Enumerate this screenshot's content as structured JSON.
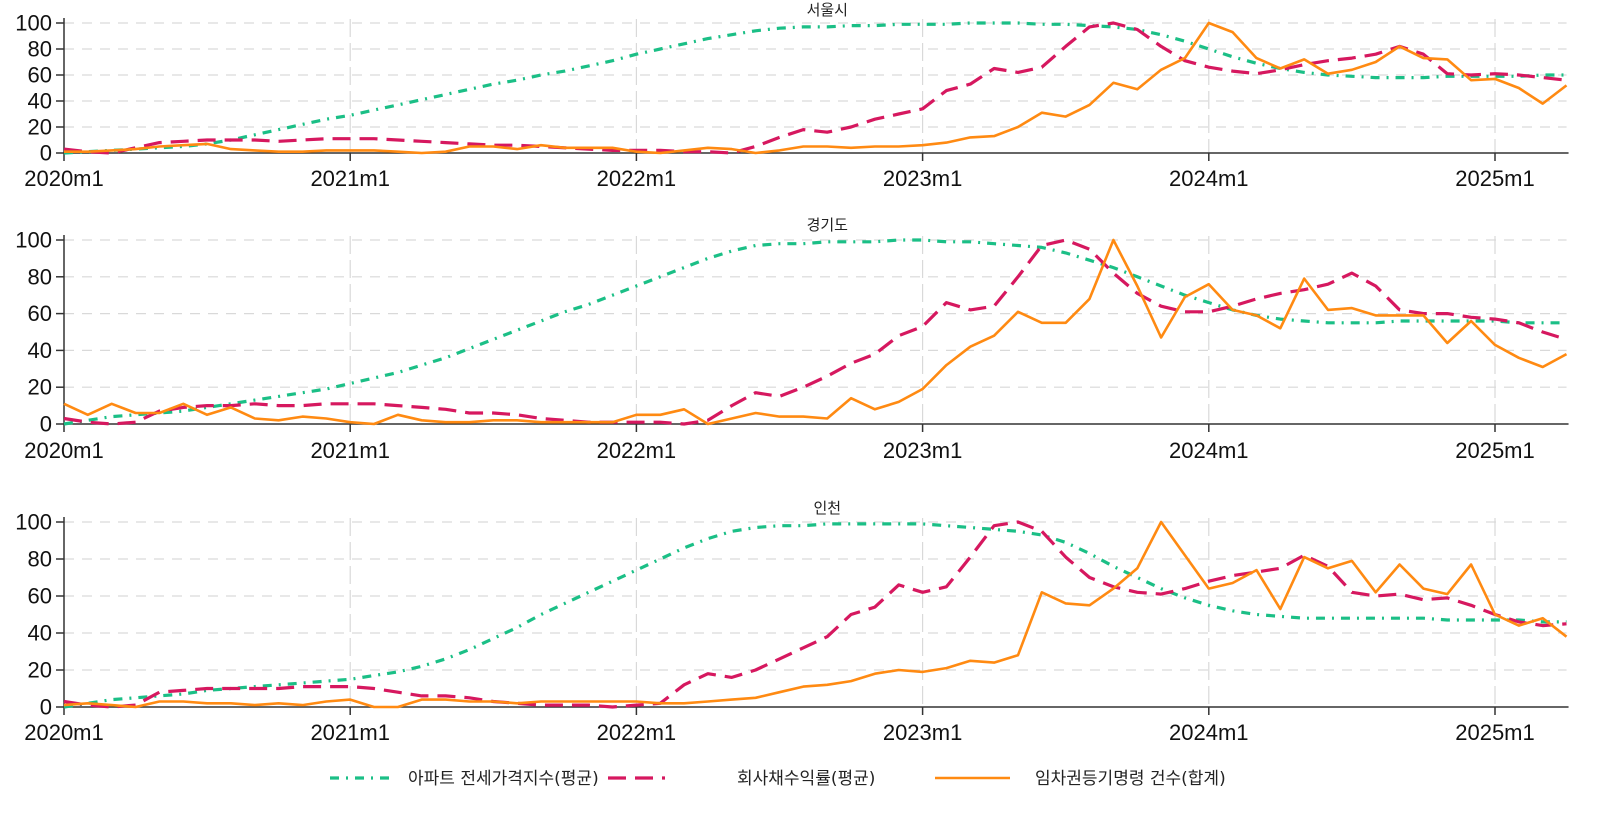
{
  "colors": {
    "jeonse": "#1bbf86",
    "bond": "#d6185f",
    "lease": "#ff8a12",
    "grid": "#d9d9d9",
    "axis": "#333333"
  },
  "chart_data": {
    "type": "line",
    "x_start": "2020m1",
    "x_tick_labels": [
      "2020m1",
      "2021m1",
      "2022m1",
      "2023m1",
      "2024m1",
      "2025m1"
    ],
    "x_range": [
      "2020m1",
      "2025m4"
    ],
    "ylim": [
      0,
      100
    ],
    "y_ticks": [
      0,
      20,
      40,
      60,
      80,
      100
    ],
    "y_tick_labels": [
      "0",
      "20",
      "40",
      "60",
      "80",
      "100"
    ],
    "grid": true,
    "legend": {
      "placement": "bottom",
      "entries": [
        {
          "key": "jeonse",
          "label": "아파트 전세가격지수(평균)",
          "style": "dash-dot"
        },
        {
          "key": "bond",
          "label": "회사채수익률(평균)",
          "style": "dash"
        },
        {
          "key": "lease",
          "label": "임차권등기명령 건수(합계)",
          "style": "solid"
        }
      ]
    },
    "panels": [
      {
        "title": "서울시",
        "series": [
          {
            "name": "아파트 전세가격지수(평균)",
            "key": "jeonse",
            "values": [
              0,
              1,
              2,
              3,
              4,
              5,
              7,
              10,
              14,
              18,
              22,
              26,
              29,
              33,
              37,
              41,
              45,
              49,
              53,
              56,
              60,
              63,
              67,
              71,
              76,
              80,
              84,
              88,
              91,
              94,
              96,
              97,
              97,
              98,
              98,
              99,
              99,
              99,
              100,
              100,
              100,
              99,
              99,
              98,
              97,
              95,
              91,
              86,
              80,
              74,
              69,
              65,
              62,
              60,
              59,
              58,
              58,
              58,
              59,
              59,
              59,
              59,
              60,
              60
            ]
          },
          {
            "name": "회사채수익률(평균)",
            "key": "bond",
            "values": [
              3,
              1,
              0,
              4,
              8,
              9,
              10,
              10,
              10,
              9,
              10,
              11,
              11,
              11,
              10,
              9,
              8,
              7,
              6,
              6,
              5,
              4,
              3,
              2,
              2,
              2,
              1,
              1,
              0,
              5,
              12,
              18,
              16,
              20,
              26,
              30,
              34,
              48,
              53,
              65,
              62,
              66,
              82,
              97,
              100,
              95,
              82,
              71,
              66,
              63,
              61,
              64,
              68,
              71,
              73,
              76,
              82,
              76,
              61,
              60,
              61,
              60,
              58,
              56
            ]
          },
          {
            "name": "임차권등기명령 건수(합계)",
            "key": "lease",
            "values": [
              1,
              1,
              2,
              3,
              5,
              6,
              7,
              3,
              2,
              1,
              1,
              2,
              2,
              2,
              1,
              0,
              1,
              5,
              5,
              3,
              6,
              4,
              4,
              4,
              1,
              0,
              2,
              4,
              3,
              0,
              2,
              5,
              5,
              4,
              5,
              5,
              6,
              8,
              12,
              13,
              20,
              31,
              28,
              37,
              54,
              49,
              64,
              73,
              100,
              93,
              73,
              65,
              72,
              61,
              64,
              70,
              82,
              73,
              72,
              56,
              57,
              50,
              38,
              52
            ]
          }
        ]
      },
      {
        "title": "경기도",
        "series": [
          {
            "name": "아파트 전세가격지수(평균)",
            "key": "jeonse",
            "values": [
              0,
              2,
              4,
              5,
              6,
              7,
              9,
              11,
              13,
              15,
              17,
              19,
              22,
              25,
              28,
              32,
              36,
              41,
              46,
              51,
              56,
              61,
              65,
              70,
              75,
              80,
              85,
              90,
              94,
              97,
              98,
              98,
              99,
              99,
              99,
              100,
              100,
              99,
              99,
              98,
              97,
              96,
              93,
              89,
              85,
              80,
              75,
              70,
              66,
              62,
              59,
              57,
              56,
              55,
              55,
              55,
              56,
              56,
              56,
              56,
              56,
              55,
              55,
              55
            ]
          },
          {
            "name": "회사채수익률(평균)",
            "key": "bond",
            "values": [
              3,
              1,
              0,
              1,
              7,
              9,
              10,
              10,
              11,
              10,
              10,
              11,
              11,
              11,
              10,
              9,
              8,
              6,
              6,
              5,
              3,
              2,
              1,
              1,
              1,
              1,
              0,
              2,
              10,
              17,
              15,
              20,
              26,
              33,
              38,
              48,
              53,
              66,
              62,
              64,
              80,
              97,
              100,
              95,
              82,
              71,
              64,
              61,
              61,
              64,
              68,
              71,
              73,
              76,
              82,
              75,
              62,
              60,
              60,
              58,
              57,
              55,
              50,
              46
            ]
          },
          {
            "name": "임차권등기명령 건수(합계)",
            "key": "lease",
            "values": [
              11,
              5,
              11,
              6,
              6,
              11,
              5,
              9,
              3,
              2,
              4,
              3,
              1,
              0,
              5,
              2,
              1,
              1,
              2,
              2,
              1,
              1,
              1,
              1,
              5,
              5,
              8,
              0,
              3,
              6,
              4,
              4,
              3,
              14,
              8,
              12,
              19,
              32,
              42,
              48,
              61,
              55,
              55,
              68,
              100,
              75,
              47,
              69,
              76,
              62,
              59,
              52,
              79,
              62,
              63,
              59,
              59,
              59,
              44,
              56,
              43,
              36,
              31,
              38
            ]
          }
        ]
      },
      {
        "title": "인천",
        "series": [
          {
            "name": "아파트 전세가격지수(평균)",
            "key": "jeonse",
            "values": [
              0,
              2,
              4,
              5,
              6,
              7,
              9,
              10,
              11,
              12,
              13,
              14,
              15,
              17,
              19,
              22,
              26,
              31,
              37,
              43,
              50,
              56,
              62,
              68,
              74,
              80,
              86,
              91,
              95,
              97,
              98,
              98,
              99,
              99,
              99,
              99,
              99,
              98,
              97,
              96,
              95,
              93,
              89,
              83,
              76,
              70,
              64,
              59,
              55,
              52,
              50,
              49,
              48,
              48,
              48,
              48,
              48,
              48,
              47,
              47,
              47,
              47,
              46,
              46
            ]
          },
          {
            "name": "회사채수익률(평균)",
            "key": "bond",
            "values": [
              3,
              1,
              0,
              1,
              8,
              9,
              10,
              10,
              10,
              10,
              11,
              11,
              11,
              10,
              8,
              6,
              6,
              5,
              3,
              2,
              1,
              1,
              1,
              0,
              1,
              2,
              12,
              18,
              16,
              20,
              26,
              32,
              38,
              50,
              54,
              66,
              62,
              65,
              81,
              98,
              100,
              95,
              81,
              70,
              65,
              62,
              61,
              64,
              68,
              71,
              73,
              75,
              82,
              76,
              62,
              60,
              61,
              58,
              59,
              55,
              50,
              46,
              44,
              45
            ]
          },
          {
            "name": "임차권등기명령 건수(합계)",
            "key": "lease",
            "values": [
              1,
              2,
              1,
              0,
              3,
              3,
              2,
              2,
              1,
              2,
              1,
              3,
              4,
              0,
              0,
              4,
              4,
              3,
              3,
              2,
              3,
              3,
              3,
              3,
              3,
              2,
              2,
              3,
              4,
              5,
              8,
              11,
              12,
              14,
              18,
              20,
              19,
              21,
              25,
              24,
              28,
              62,
              56,
              55,
              64,
              75,
              100,
              82,
              64,
              67,
              74,
              53,
              81,
              75,
              79,
              62,
              77,
              64,
              61,
              77,
              50,
              44,
              48,
              38
            ]
          }
        ]
      }
    ]
  }
}
